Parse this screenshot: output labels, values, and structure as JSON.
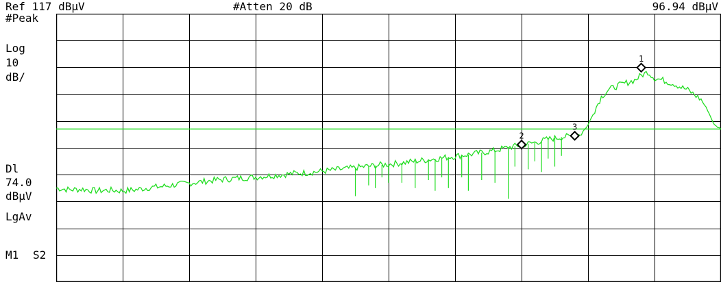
{
  "header": {
    "ref_level": "Ref 117 dBµV",
    "attenuation": "#Atten 20 dB",
    "marker_readout": "96.94 dBµV"
  },
  "left_panel": {
    "detector": "#Peak",
    "scale_type": "Log",
    "scale_value": "10",
    "scale_unit": "dB/",
    "display_line_label": "Dl",
    "display_line_value": "74.0",
    "display_line_unit": "dBµV",
    "averaging": "LgAv",
    "marker_mode": "M1",
    "sweep_mode": "S2"
  },
  "colors": {
    "trace": "#22dd22",
    "display_line": "#22dd22",
    "grid": "#000000",
    "background": "#ffffff"
  },
  "chart_data": {
    "type": "line",
    "title": "",
    "xlabel": "",
    "ylabel": "",
    "ylim": [
      17,
      117
    ],
    "xlim": [
      0,
      100
    ],
    "scale": "log",
    "grid": true,
    "display_line": 74.0,
    "markers": [
      {
        "label": "1",
        "x": 88,
        "y": 96.9
      },
      {
        "label": "2",
        "x": 70,
        "y": 68.2
      },
      {
        "label": "3",
        "x": 78,
        "y": 71.5
      }
    ],
    "series": [
      {
        "x": [
          0,
          2,
          4,
          6,
          8,
          10,
          12,
          14,
          16,
          18,
          20,
          22,
          24,
          26,
          28,
          30,
          32,
          34,
          36,
          38,
          40,
          42,
          44,
          46,
          48,
          50,
          52,
          54,
          56,
          58,
          60,
          62,
          64,
          66,
          68,
          70,
          72,
          74,
          76,
          77,
          78,
          79,
          80,
          81,
          82,
          83,
          84,
          85,
          86,
          87,
          88,
          89,
          90,
          91,
          92,
          93,
          94,
          95,
          96,
          97,
          98,
          99,
          100
        ],
        "y": [
          52.0,
          51.4,
          51.6,
          51.0,
          51.2,
          51.0,
          51.4,
          52.2,
          52.6,
          53.3,
          53.8,
          54.4,
          55.0,
          55.4,
          55.8,
          56.1,
          56.6,
          57.0,
          57.5,
          57.8,
          58.3,
          58.8,
          59.3,
          59.9,
          60.4,
          60.9,
          61.4,
          62.0,
          62.6,
          63.2,
          63.9,
          64.5,
          65.2,
          66.0,
          67.2,
          68.0,
          69.0,
          70.2,
          71.0,
          71.2,
          71.6,
          72.4,
          75.5,
          81.0,
          86.0,
          88.5,
          89.7,
          90.6,
          91.4,
          92.2,
          94.0,
          95.3,
          93.0,
          92.4,
          91.6,
          90.8,
          89.6,
          88.6,
          86.8,
          85.0,
          81.0,
          75.5,
          74.0
        ]
      }
    ],
    "dropouts": [
      {
        "x": 45,
        "y": 49
      },
      {
        "x": 47,
        "y": 53
      },
      {
        "x": 48,
        "y": 52
      },
      {
        "x": 49,
        "y": 56
      },
      {
        "x": 50,
        "y": 54
      },
      {
        "x": 52,
        "y": 54
      },
      {
        "x": 54,
        "y": 52
      },
      {
        "x": 56,
        "y": 55
      },
      {
        "x": 57,
        "y": 51
      },
      {
        "x": 58,
        "y": 56
      },
      {
        "x": 59,
        "y": 52
      },
      {
        "x": 61,
        "y": 56
      },
      {
        "x": 62,
        "y": 51
      },
      {
        "x": 64,
        "y": 55
      },
      {
        "x": 66,
        "y": 54
      },
      {
        "x": 68,
        "y": 48
      },
      {
        "x": 69,
        "y": 60
      },
      {
        "x": 71,
        "y": 59
      },
      {
        "x": 72,
        "y": 62
      },
      {
        "x": 73,
        "y": 58
      },
      {
        "x": 74,
        "y": 63
      },
      {
        "x": 75,
        "y": 60
      },
      {
        "x": 76,
        "y": 64
      }
    ]
  }
}
